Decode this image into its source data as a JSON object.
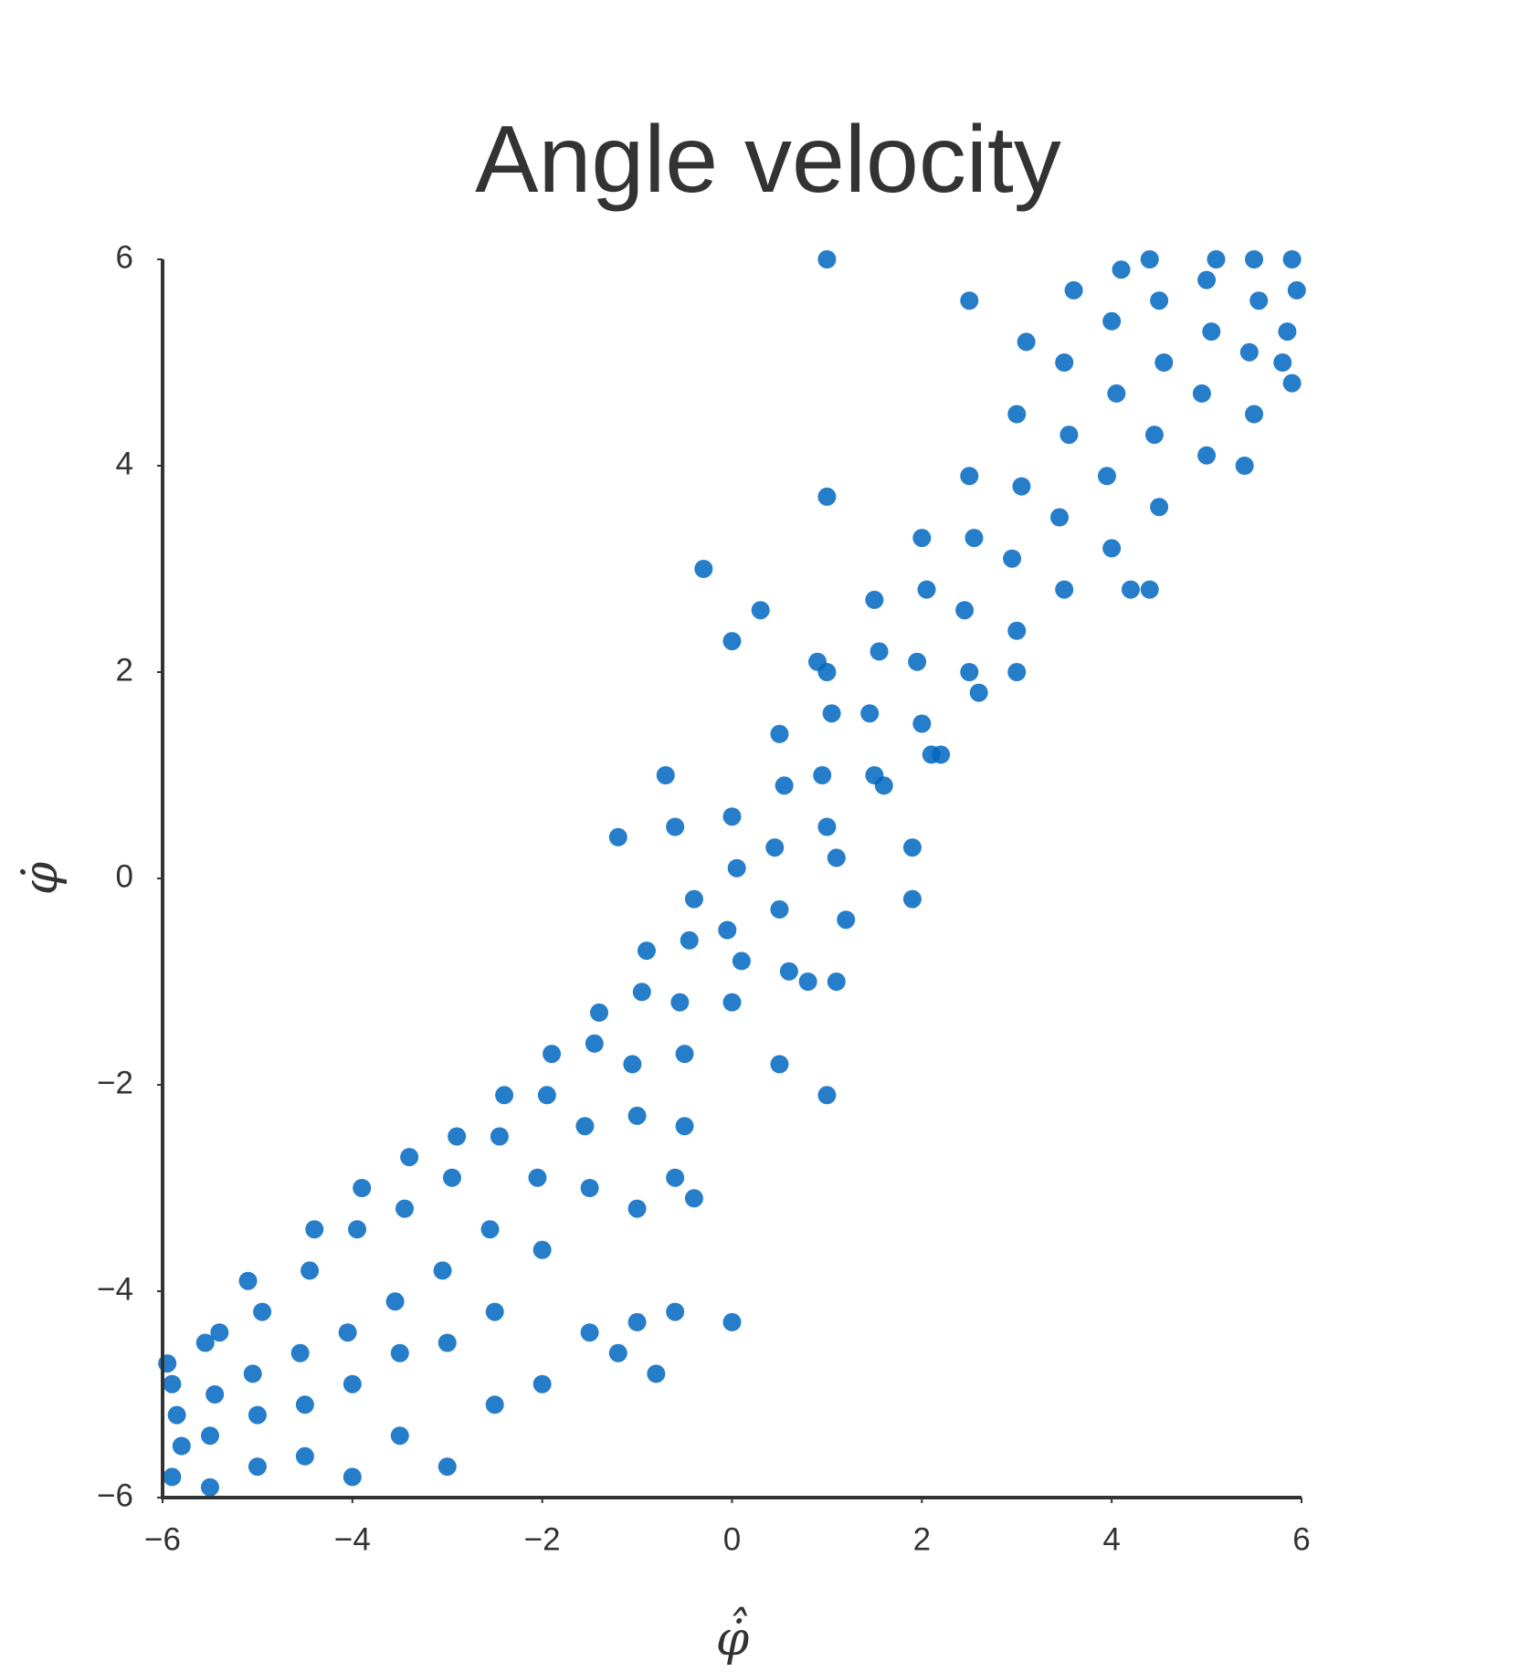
{
  "chart_data": {
    "type": "scatter",
    "title": "Angle velocity",
    "xlabel": "φ̇̂",
    "ylabel": "φ̇",
    "color": "#0066bf",
    "xlim": [
      -6,
      6
    ],
    "ylim": [
      -6,
      6
    ],
    "xticks": [
      {
        "value": -6,
        "label": "−6"
      },
      {
        "value": -4,
        "label": "−4"
      },
      {
        "value": -2,
        "label": "−2"
      },
      0,
      2,
      4,
      6
    ],
    "yticks": [
      {
        "value": -6,
        "label": "−6"
      },
      {
        "value": -4,
        "label": "−4"
      },
      {
        "value": -2,
        "label": "−2"
      },
      0,
      2,
      4,
      6
    ],
    "x": [
      -5.9,
      -5.85,
      -5.95,
      -5.8,
      -5.9,
      -5.5,
      -5.45,
      -5.55,
      -5.5,
      -5.4,
      -5.0,
      -5.05,
      -4.95,
      -5.0,
      -5.1,
      -4.5,
      -4.55,
      -4.45,
      -4.5,
      -4.4,
      -4.0,
      -4.05,
      -3.95,
      -4.0,
      -3.9,
      -3.5,
      -3.55,
      -3.45,
      -3.5,
      -3.4,
      -3.0,
      -3.05,
      -2.95,
      -3.0,
      -2.9,
      -2.5,
      -2.55,
      -2.45,
      -2.5,
      -2.4,
      -2.0,
      -2.05,
      -1.95,
      -2.0,
      -1.9,
      -1.5,
      -1.55,
      -1.45,
      -1.5,
      -1.4,
      -1.0,
      -1.05,
      -0.95,
      -1.0,
      -0.9,
      -0.5,
      -0.55,
      -0.45,
      -0.5,
      -0.4,
      0.0,
      -0.05,
      0.05,
      0.0,
      0.1,
      0.5,
      0.45,
      0.55,
      0.5,
      0.6,
      1.0,
      0.95,
      1.05,
      1.0,
      1.1,
      1.5,
      1.45,
      1.55,
      1.5,
      1.6,
      2.0,
      1.95,
      2.05,
      2.0,
      2.1,
      2.5,
      2.45,
      2.55,
      2.5,
      2.6,
      3.0,
      2.95,
      3.05,
      3.0,
      3.1,
      3.5,
      3.45,
      3.55,
      3.5,
      3.6,
      4.0,
      3.95,
      4.05,
      4.0,
      4.1,
      4.5,
      4.45,
      4.55,
      4.5,
      4.4,
      5.0,
      4.95,
      5.05,
      5.0,
      5.1,
      5.5,
      5.45,
      5.55,
      5.5,
      5.4,
      5.9,
      5.85,
      5.95,
      5.9,
      5.8,
      -0.3,
      0.0,
      0.3,
      -0.7,
      -1.2,
      -0.6,
      1.0,
      1.0,
      0.5,
      1.9,
      1.9,
      1.2,
      1.1,
      0.8,
      0.0,
      -0.6,
      -1.0,
      -0.8,
      -1.2,
      1.0,
      2.5,
      3.0,
      4.4,
      4.2,
      -0.4,
      -0.6,
      0.9,
      2.2
    ],
    "y": [
      -5.8,
      -5.2,
      -4.7,
      -5.5,
      -4.9,
      -5.9,
      -5.0,
      -4.5,
      -5.4,
      -4.4,
      -5.7,
      -4.8,
      -4.2,
      -5.2,
      -3.9,
      -5.6,
      -4.6,
      -3.8,
      -5.1,
      -3.4,
      -5.8,
      -4.4,
      -3.4,
      -4.9,
      -3.0,
      -5.4,
      -4.1,
      -3.2,
      -4.6,
      -2.7,
      -5.7,
      -3.8,
      -2.9,
      -4.5,
      -2.5,
      -5.1,
      -3.4,
      -2.5,
      -4.2,
      -2.1,
      -4.9,
      -2.9,
      -2.1,
      -3.6,
      -1.7,
      -4.4,
      -2.4,
      -1.6,
      -3.0,
      -1.3,
      -3.2,
      -1.8,
      -1.1,
      -2.3,
      -0.7,
      -2.4,
      -1.2,
      -0.6,
      -1.7,
      -0.2,
      -1.2,
      -0.5,
      0.1,
      0.6,
      -0.8,
      -0.3,
      0.3,
      0.9,
      1.4,
      -0.9,
      0.5,
      1.0,
      1.6,
      2.0,
      0.2,
      1.0,
      1.6,
      2.2,
      2.7,
      0.9,
      1.5,
      2.1,
      2.8,
      3.3,
      1.2,
      2.0,
      2.6,
      3.3,
      3.9,
      1.8,
      2.4,
      3.1,
      3.8,
      4.5,
      5.2,
      2.8,
      3.5,
      4.3,
      5.0,
      5.7,
      3.2,
      3.9,
      4.7,
      5.4,
      5.9,
      3.6,
      4.3,
      5.0,
      5.6,
      6.0,
      4.1,
      4.7,
      5.3,
      5.8,
      6.0,
      4.5,
      5.1,
      5.6,
      6.0,
      4.0,
      4.8,
      5.3,
      5.7,
      6.0,
      5.0,
      3.0,
      2.3,
      2.6,
      1.0,
      0.4,
      0.5,
      3.7,
      -2.1,
      -1.8,
      -0.2,
      0.3,
      -0.4,
      -1.0,
      -1.0,
      -4.3,
      -4.2,
      -4.3,
      -4.8,
      -4.6,
      6.0,
      5.6,
      2.0,
      2.8,
      2.8,
      -3.1,
      -2.9,
      2.1,
      1.2
    ]
  }
}
